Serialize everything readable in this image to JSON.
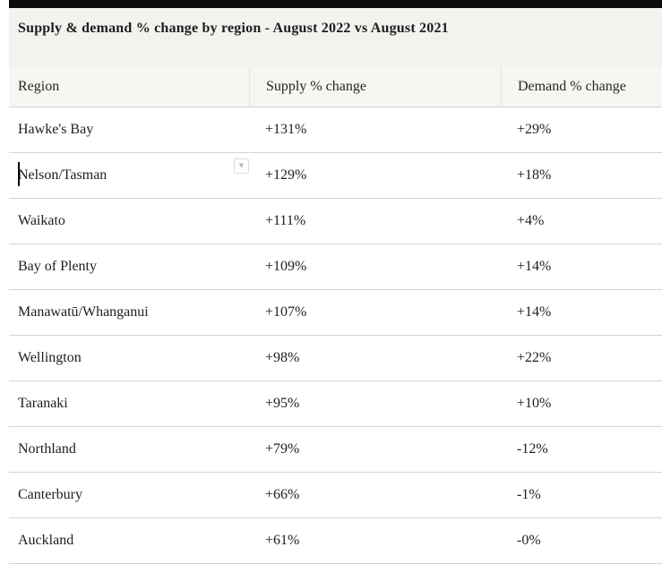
{
  "widget": {
    "title": "Supply & demand % change by region - August 2022 vs August 2021"
  },
  "table": {
    "columns": [
      {
        "label": "Region"
      },
      {
        "label": "Supply % change"
      },
      {
        "label": "Demand % change"
      }
    ],
    "rows": [
      {
        "region": "Hawke's Bay",
        "supply": "+131%",
        "demand": "+29%"
      },
      {
        "region": "Nelson/Tasman",
        "supply": "+129%",
        "demand": "+18%",
        "text_cursor": true,
        "dropdown_control": true
      },
      {
        "region": "Waikato",
        "supply": "+111%",
        "demand": "+4%"
      },
      {
        "region": "Bay of Plenty",
        "supply": "+109%",
        "demand": "+14%"
      },
      {
        "region": "Manawatū/Whanganui",
        "supply": "+107%",
        "demand": "+14%"
      },
      {
        "region": "Wellington",
        "supply": "+98%",
        "demand": "+22%"
      },
      {
        "region": "Taranaki",
        "supply": "+95%",
        "demand": "+10%"
      },
      {
        "region": "Northland",
        "supply": "+79%",
        "demand": "-12%"
      },
      {
        "region": "Canterbury",
        "supply": "+66%",
        "demand": "-1%"
      },
      {
        "region": "Auckland",
        "supply": "+61%",
        "demand": "-0%"
      }
    ]
  },
  "icons": {
    "dropdown_glyph": "▼"
  },
  "colors": {
    "top_bar": "#0b0b0b",
    "title_band": "#f3f2ef",
    "header_band": "#f7f6f3",
    "header_border": "#d2d1ce",
    "row_border": "#d5d4d2",
    "column_separator": "#e4e3e0",
    "text": "#1e1e1e"
  },
  "chart_data": {
    "type": "table",
    "title": "Supply & demand % change by region - August 2022 vs August 2021",
    "columns": [
      "Region",
      "Supply % change",
      "Demand % change"
    ],
    "rows": [
      [
        "Hawke's Bay",
        "+131%",
        "+29%"
      ],
      [
        "Nelson/Tasman",
        "+129%",
        "+18%"
      ],
      [
        "Waikato",
        "+111%",
        "+4%"
      ],
      [
        "Bay of Plenty",
        "+109%",
        "+14%"
      ],
      [
        "Manawatū/Whanganui",
        "+107%",
        "+14%"
      ],
      [
        "Wellington",
        "+98%",
        "+22%"
      ],
      [
        "Taranaki",
        "+95%",
        "+10%"
      ],
      [
        "Northland",
        "+79%",
        "-12%"
      ],
      [
        "Canterbury",
        "+66%",
        "-1%"
      ],
      [
        "Auckland",
        "+61%",
        "-0%"
      ]
    ]
  }
}
